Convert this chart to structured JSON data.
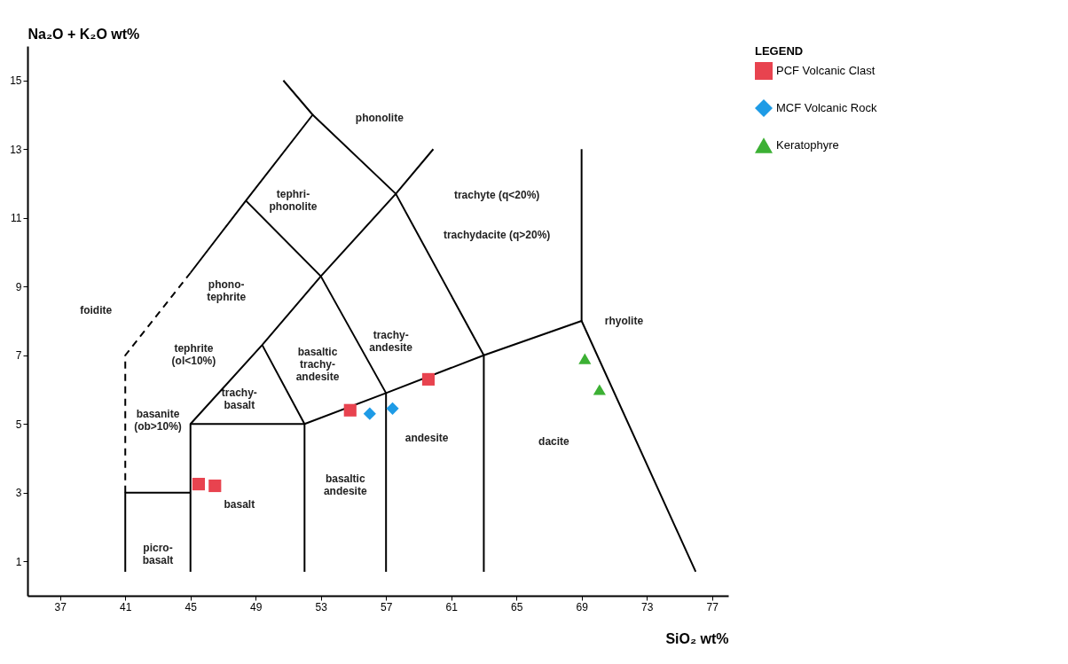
{
  "chart_data": {
    "type": "scatter",
    "xlabel": "SiO₂ wt%",
    "ylabel": "Na₂O + K₂O wt%",
    "legend_title": "LEGEND",
    "legend": "right",
    "grid": false,
    "xlim": [
      35,
      78
    ],
    "ylim": [
      0,
      16
    ],
    "xticks": [
      37,
      41,
      45,
      49,
      53,
      57,
      61,
      65,
      69,
      73,
      77
    ],
    "yticks": [
      1,
      3,
      5,
      7,
      9,
      11,
      13,
      15
    ],
    "series": [
      {
        "type": "line",
        "color": "#000000",
        "x": [
          41,
          41,
          45
        ],
        "values": [
          0.7,
          3,
          3
        ]
      },
      {
        "type": "line",
        "color": "#000000",
        "line_style": "dashed",
        "x": [
          41,
          41,
          45
        ],
        "values": [
          3,
          7,
          9.4
        ]
      },
      {
        "type": "line",
        "color": "#000000",
        "x": [
          45,
          45,
          52,
          57,
          63,
          69,
          76
        ],
        "values": [
          0.7,
          5,
          5,
          5.9,
          7,
          8,
          0.7
        ]
      },
      {
        "type": "line",
        "color": "#000000",
        "x": [
          49.4,
          52,
          52
        ],
        "values": [
          7.3,
          5,
          0.7
        ]
      },
      {
        "type": "line",
        "color": "#000000",
        "x": [
          48.4,
          53,
          57,
          57
        ],
        "values": [
          11.5,
          9.3,
          5.9,
          0.7
        ]
      },
      {
        "type": "line",
        "color": "#000000",
        "x": [
          52.5,
          57.6,
          63,
          63
        ],
        "values": [
          14,
          11.7,
          7,
          0.7
        ]
      },
      {
        "type": "line",
        "color": "#000000",
        "x": [
          69,
          69
        ],
        "values": [
          8,
          13
        ]
      },
      {
        "type": "line",
        "color": "#000000",
        "x": [
          45,
          49.4,
          53,
          57.6,
          59.9
        ],
        "values": [
          5,
          7.3,
          9.3,
          11.7,
          13
        ]
      },
      {
        "type": "line",
        "color": "#000000",
        "x": [
          45,
          48.4,
          52.5,
          50.7
        ],
        "values": [
          9.4,
          11.5,
          14,
          15
        ]
      },
      {
        "name": "PCF Volcanic Clast",
        "color": "#e8434f",
        "marker": "square",
        "x": [
          45.5,
          46.5,
          54.8,
          59.6
        ],
        "values": [
          3.25,
          3.2,
          5.4,
          6.3
        ]
      },
      {
        "name": "MCF Volcanic Rock",
        "color": "#1e9be6",
        "marker": "diamond",
        "x": [
          56,
          57.4
        ],
        "values": [
          5.3,
          5.45
        ]
      },
      {
        "name": "Keratophyre",
        "color": "#3cb034",
        "marker": "triangle",
        "x": [
          69.2,
          70.1
        ],
        "values": [
          6.9,
          6
        ]
      }
    ],
    "annotations": [
      "foidite",
      "phonolite",
      "tephri-\nphonolite",
      "phono-\ntephrite",
      "trachyte (q<20%)",
      "trachydacite (q>20%)",
      "trachy-\nandesite",
      "basaltic\ntrachy-\nandesite",
      "tephrite\n(ol<10%)",
      "basanite\n(ob>10%)",
      "trachy-\nbasalt",
      "rhyolite",
      "dacite",
      "andesite",
      "basaltic\nandesite",
      "basalt",
      "picro-\nbasalt"
    ]
  }
}
